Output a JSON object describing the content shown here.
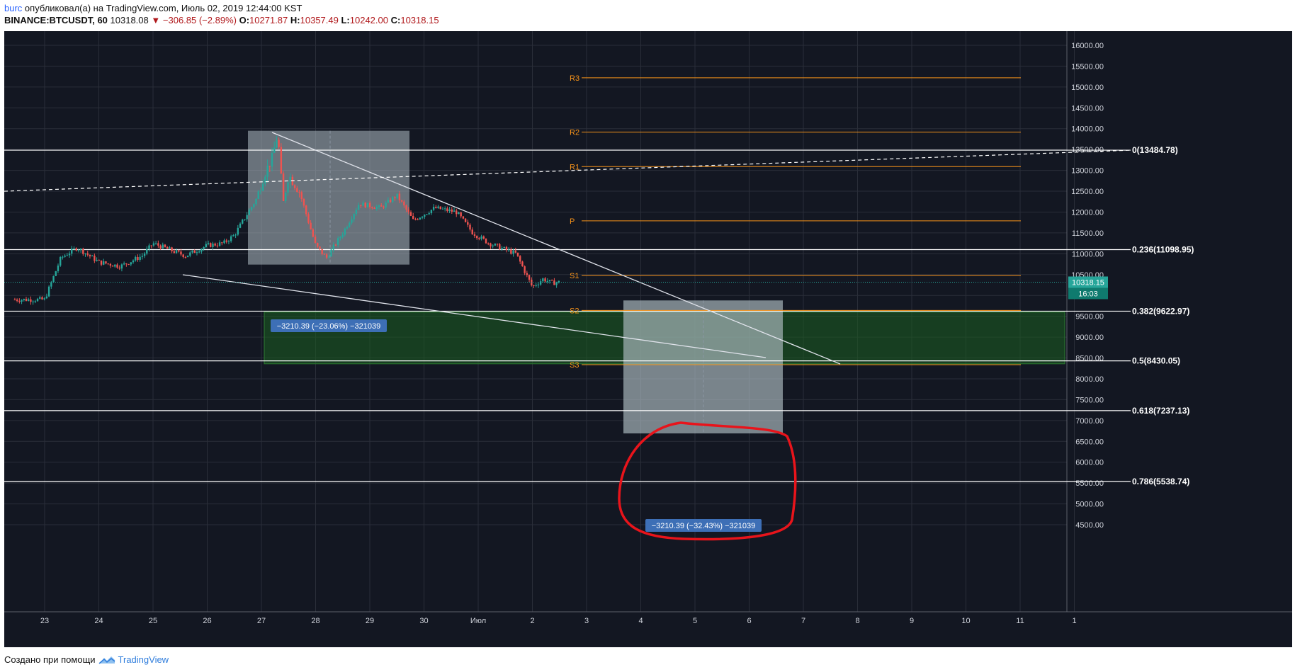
{
  "header": {
    "user": "burc",
    "published": "опубликовал(а) на TradingView.com, Июль 02, 2019 12:44:00 KST",
    "symbol": "BINANCE:BTCUSDT, 60",
    "last": "10318.08",
    "arrow": "▼",
    "change": "−306.85 (−2.89%)",
    "o_label": "O:",
    "o": "10271.87",
    "h_label": "H:",
    "h": "10357.49",
    "l_label": "L:",
    "l": "10242.00",
    "c_label": "C:",
    "c": "10318.15"
  },
  "footer": {
    "created": "Создано при помощи",
    "brand": "TradingView",
    "logo_icon": "tradingview-logo-icon"
  },
  "colors": {
    "background": "#131722",
    "grid": "#2a2e39",
    "up": "#26a69a",
    "down": "#ef5350",
    "pivot": "#f7931a",
    "fib": "#ffffff",
    "zone": "#1b5e20",
    "measure_box": "#b0bec5",
    "annotation": "#e8141b",
    "label_bg": "#3d6fb6"
  },
  "axis": {
    "y_ticks": [
      "16000.00",
      "15500.00",
      "15000.00",
      "14500.00",
      "14000.00",
      "13500.00",
      "13000.00",
      "12500.00",
      "12000.00",
      "11500.00",
      "11000.00",
      "10500.00",
      "9500.00",
      "9000.00",
      "8500.00",
      "8000.00",
      "7500.00",
      "7000.00",
      "6500.00",
      "6000.00",
      "5500.00",
      "5000.00",
      "4500.00"
    ],
    "x_ticks": [
      "23",
      "24",
      "25",
      "26",
      "27",
      "28",
      "29",
      "30",
      "Июл",
      "2",
      "3",
      "4",
      "5",
      "6",
      "7",
      "8",
      "9",
      "10",
      "11",
      "1"
    ],
    "current_price": "10318.15",
    "countdown": "16:03",
    "partial_tick": "10"
  },
  "fib_levels": [
    {
      "label": "0(13484.78)",
      "value": 13484.78
    },
    {
      "label": "0.236(11098.95)",
      "value": 11098.95
    },
    {
      "label": "0.382(9622.97)",
      "value": 9622.97
    },
    {
      "label": "0.5(8430.05)",
      "value": 8430.05
    },
    {
      "label": "0.618(7237.13)",
      "value": 7237.13
    },
    {
      "label": "0.786(5538.74)",
      "value": 5538.74
    }
  ],
  "pivots": [
    {
      "label": "R3",
      "value": 15220
    },
    {
      "label": "R2",
      "value": 13920
    },
    {
      "label": "R1",
      "value": 13090
    },
    {
      "label": "P",
      "value": 11790
    },
    {
      "label": "S1",
      "value": 10480
    },
    {
      "label": "S2",
      "value": 9640
    },
    {
      "label": "S3",
      "value": 8340
    }
  ],
  "measurements": [
    {
      "label": "−3210.39 (−23.06%) −321039"
    },
    {
      "label": "−3210.39 (−32.43%) −321039"
    }
  ]
}
